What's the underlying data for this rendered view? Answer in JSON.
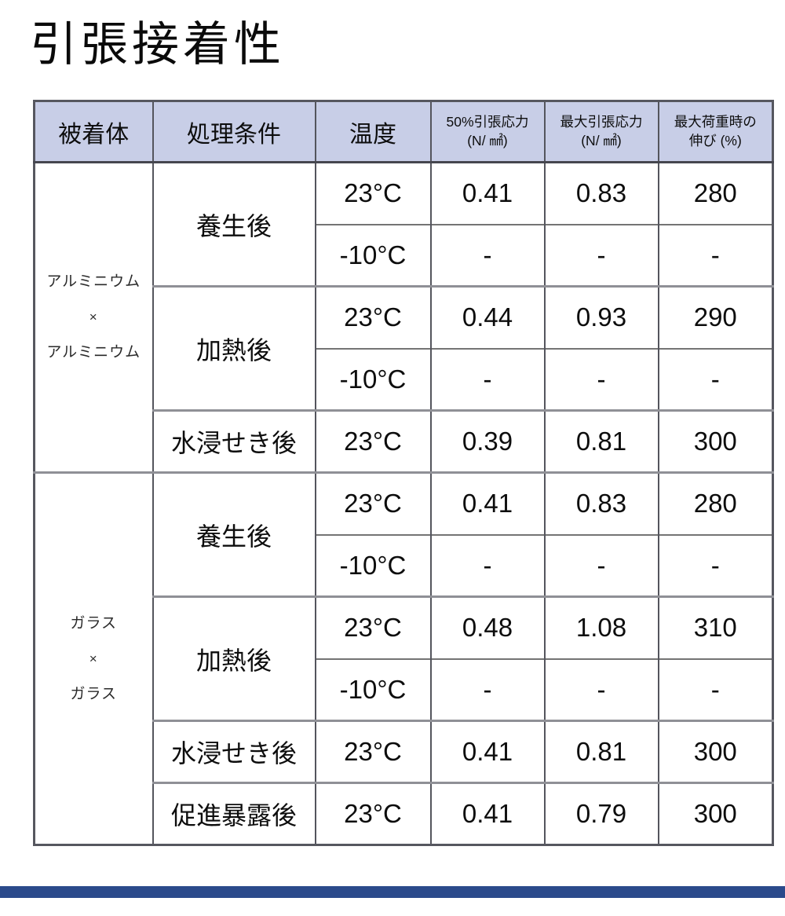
{
  "title": "引張接着性",
  "colors": {
    "header_bg": "#c8cee7",
    "border_dark": "#54555d",
    "border_light": "#747474",
    "border_heavy": "#8f9096",
    "footer_bar": "#2b4a8b"
  },
  "table": {
    "headers": {
      "adherend": "被着体",
      "treatment": "処理条件",
      "temperature": "温度",
      "stress50": [
        "50%引張応力",
        "(N/ ㎟)"
      ],
      "stress_max": [
        "最大引張応力",
        "(N/ ㎟)"
      ],
      "elongation": [
        "最大荷重時の",
        "伸び (%)"
      ]
    },
    "groups": [
      {
        "adherend": [
          "アルミニウム",
          "×",
          "アルミニウム"
        ],
        "conditions": [
          {
            "label": "養生後",
            "rows": [
              {
                "temp": "23°C",
                "s50": "0.41",
                "smax": "0.83",
                "elong": "280"
              },
              {
                "temp": "-10°C",
                "s50": "-",
                "smax": "-",
                "elong": "-"
              }
            ]
          },
          {
            "label": "加熱後",
            "rows": [
              {
                "temp": "23°C",
                "s50": "0.44",
                "smax": "0.93",
                "elong": "290"
              },
              {
                "temp": "-10°C",
                "s50": "-",
                "smax": "-",
                "elong": "-"
              }
            ]
          },
          {
            "label": "水浸せき後",
            "rows": [
              {
                "temp": "23°C",
                "s50": "0.39",
                "smax": "0.81",
                "elong": "300"
              }
            ]
          }
        ]
      },
      {
        "adherend": [
          "ガラス",
          "×",
          "ガラス"
        ],
        "conditions": [
          {
            "label": "養生後",
            "rows": [
              {
                "temp": "23°C",
                "s50": "0.41",
                "smax": "0.83",
                "elong": "280"
              },
              {
                "temp": "-10°C",
                "s50": "-",
                "smax": "-",
                "elong": "-"
              }
            ]
          },
          {
            "label": "加熱後",
            "rows": [
              {
                "temp": "23°C",
                "s50": "0.48",
                "smax": "1.08",
                "elong": "310"
              },
              {
                "temp": "-10°C",
                "s50": "-",
                "smax": "-",
                "elong": "-"
              }
            ]
          },
          {
            "label": "水浸せき後",
            "rows": [
              {
                "temp": "23°C",
                "s50": "0.41",
                "smax": "0.81",
                "elong": "300"
              }
            ]
          },
          {
            "label": "促進暴露後",
            "rows": [
              {
                "temp": "23°C",
                "s50": "0.41",
                "smax": "0.79",
                "elong": "300"
              }
            ]
          }
        ]
      }
    ]
  },
  "chart_data": {
    "type": "table",
    "title": "引張接着性",
    "columns": [
      "被着体",
      "処理条件",
      "温度",
      "50%引張応力 (N/㎟)",
      "最大引張応力 (N/㎟)",
      "最大荷重時の伸び (%)"
    ],
    "rows": [
      [
        "アルミニウム×アルミニウム",
        "養生後",
        "23°C",
        "0.41",
        "0.83",
        "280"
      ],
      [
        "アルミニウム×アルミニウム",
        "養生後",
        "-10°C",
        "-",
        "-",
        "-"
      ],
      [
        "アルミニウム×アルミニウム",
        "加熱後",
        "23°C",
        "0.44",
        "0.93",
        "290"
      ],
      [
        "アルミニウム×アルミニウム",
        "加熱後",
        "-10°C",
        "-",
        "-",
        "-"
      ],
      [
        "アルミニウム×アルミニウム",
        "水浸せき後",
        "23°C",
        "0.39",
        "0.81",
        "300"
      ],
      [
        "ガラス×ガラス",
        "養生後",
        "23°C",
        "0.41",
        "0.83",
        "280"
      ],
      [
        "ガラス×ガラス",
        "養生後",
        "-10°C",
        "-",
        "-",
        "-"
      ],
      [
        "ガラス×ガラス",
        "加熱後",
        "23°C",
        "0.48",
        "1.08",
        "310"
      ],
      [
        "ガラス×ガラス",
        "加熱後",
        "-10°C",
        "-",
        "-",
        "-"
      ],
      [
        "ガラス×ガラス",
        "水浸せき後",
        "23°C",
        "0.41",
        "0.81",
        "300"
      ],
      [
        "ガラス×ガラス",
        "促進暴露後",
        "23°C",
        "0.41",
        "0.79",
        "300"
      ]
    ]
  }
}
